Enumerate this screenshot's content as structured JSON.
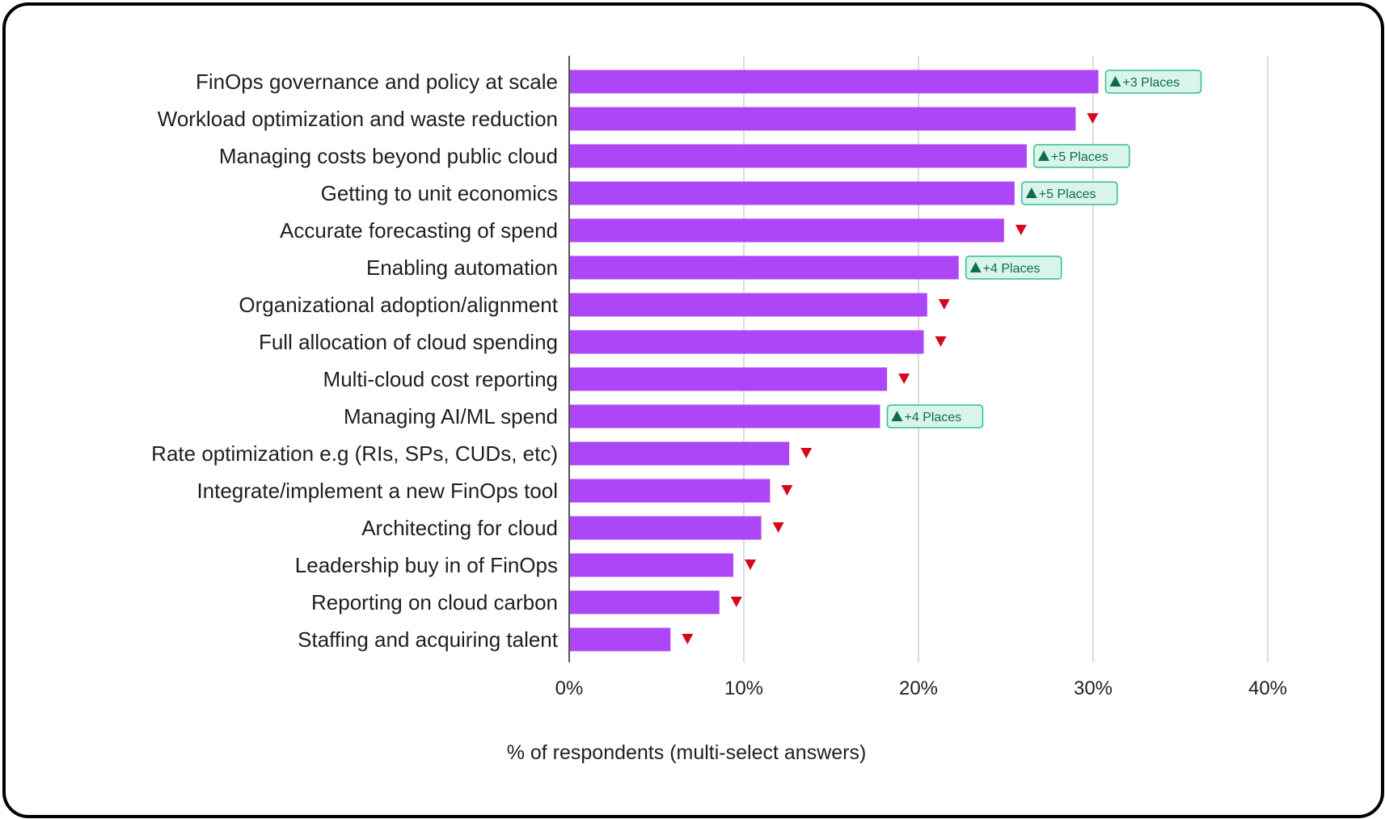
{
  "chart_data": {
    "type": "bar",
    "orientation": "horizontal",
    "title": "",
    "xlabel": "% of respondents (multi-select answers)",
    "ylabel": "",
    "xlim": [
      0,
      40
    ],
    "x_ticks": [
      "0%",
      "10%",
      "20%",
      "30%",
      "40%"
    ],
    "grid": true,
    "colors": {
      "bar": "#ac46f7",
      "up_badge_fill": "#d9f5ea",
      "up_badge_border": "#2fbf8f",
      "up_badge_text": "#0f6b4f",
      "down_marker": "#d6091c"
    },
    "categories": [
      "FinOps governance and policy at scale",
      "Workload optimization and waste reduction",
      "Managing costs beyond public cloud",
      "Getting to unit economics",
      "Accurate forecasting of spend",
      "Enabling automation",
      "Organizational adoption/alignment",
      "Full allocation of cloud spending",
      "Multi-cloud cost reporting",
      "Managing AI/ML spend",
      "Rate optimization e.g (RIs, SPs, CUDs, etc)",
      "Integrate/implement a new FinOps tool",
      "Architecting for cloud",
      "Leadership buy in of FinOps",
      "Reporting on cloud carbon",
      "Staffing and acquiring talent"
    ],
    "values": [
      30.3,
      29.0,
      26.2,
      25.5,
      24.9,
      22.3,
      20.5,
      20.3,
      18.2,
      17.8,
      12.6,
      11.5,
      11.0,
      9.4,
      8.6,
      5.8
    ],
    "rank_change": [
      {
        "direction": "up",
        "label": "+3 Places"
      },
      {
        "direction": "down",
        "label": ""
      },
      {
        "direction": "up",
        "label": "+5 Places"
      },
      {
        "direction": "up",
        "label": "+5 Places"
      },
      {
        "direction": "down",
        "label": ""
      },
      {
        "direction": "up",
        "label": "+4 Places"
      },
      {
        "direction": "down",
        "label": ""
      },
      {
        "direction": "down",
        "label": ""
      },
      {
        "direction": "down",
        "label": ""
      },
      {
        "direction": "up",
        "label": "+4 Places"
      },
      {
        "direction": "down",
        "label": ""
      },
      {
        "direction": "down",
        "label": ""
      },
      {
        "direction": "down",
        "label": ""
      },
      {
        "direction": "down",
        "label": ""
      },
      {
        "direction": "down",
        "label": ""
      },
      {
        "direction": "down",
        "label": ""
      }
    ]
  }
}
